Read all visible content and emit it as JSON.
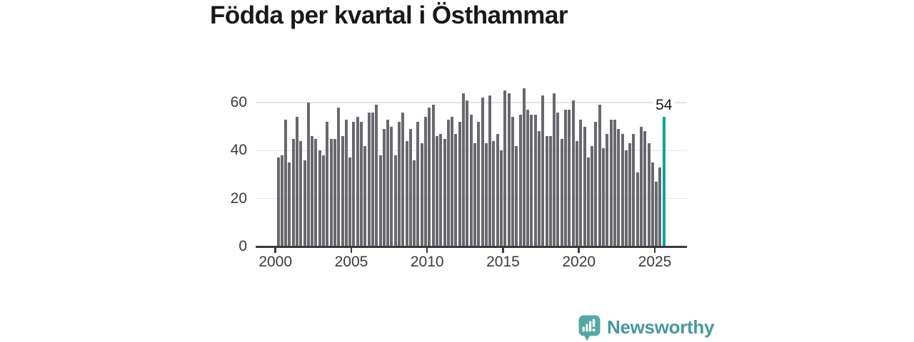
{
  "title": "Födda per kvartal i Östhammar",
  "chart_data": {
    "type": "bar",
    "title": "Födda per kvartal i Östhammar",
    "frequency": "quarterly",
    "start_period": "2000 Q1",
    "end_period": "2025 Q3",
    "values": [
      37,
      38,
      53,
      35,
      45,
      54,
      44,
      36,
      60,
      46,
      45,
      40,
      38,
      52,
      45,
      45,
      58,
      46,
      53,
      37,
      52,
      54,
      52,
      42,
      56,
      56,
      59,
      38,
      49,
      53,
      50,
      38,
      52,
      56,
      44,
      49,
      36,
      52,
      43,
      54,
      58,
      59,
      46,
      47,
      45,
      53,
      54,
      47,
      52,
      64,
      61,
      55,
      43,
      52,
      62,
      43,
      63,
      44,
      47,
      40,
      65,
      64,
      54,
      42,
      55,
      66,
      57,
      55,
      55,
      48,
      63,
      46,
      46,
      64,
      56,
      45,
      57,
      57,
      61,
      44,
      53,
      50,
      37,
      42,
      52,
      59,
      41,
      47,
      53,
      53,
      49,
      47,
      40,
      43,
      47,
      31,
      50,
      48,
      43,
      35,
      27,
      33,
      54
    ],
    "highlight_index": 102,
    "highlight_value_label": "54",
    "bar_color": "#68686f",
    "highlight_color": "#00a59c",
    "yticks": [
      0,
      20,
      40,
      60
    ],
    "xticks": [
      "2000",
      "2005",
      "2010",
      "2015",
      "2020",
      "2025"
    ],
    "ylim": [
      0,
      68.6
    ],
    "grid": "horizontal",
    "legend": "none"
  },
  "branding": {
    "logo_text": "Newsworthy",
    "logo_color": "#45989e",
    "icon": "newsworthy-speech-bubble-bar-chart-icon",
    "icon_color": "#53a8a4"
  }
}
